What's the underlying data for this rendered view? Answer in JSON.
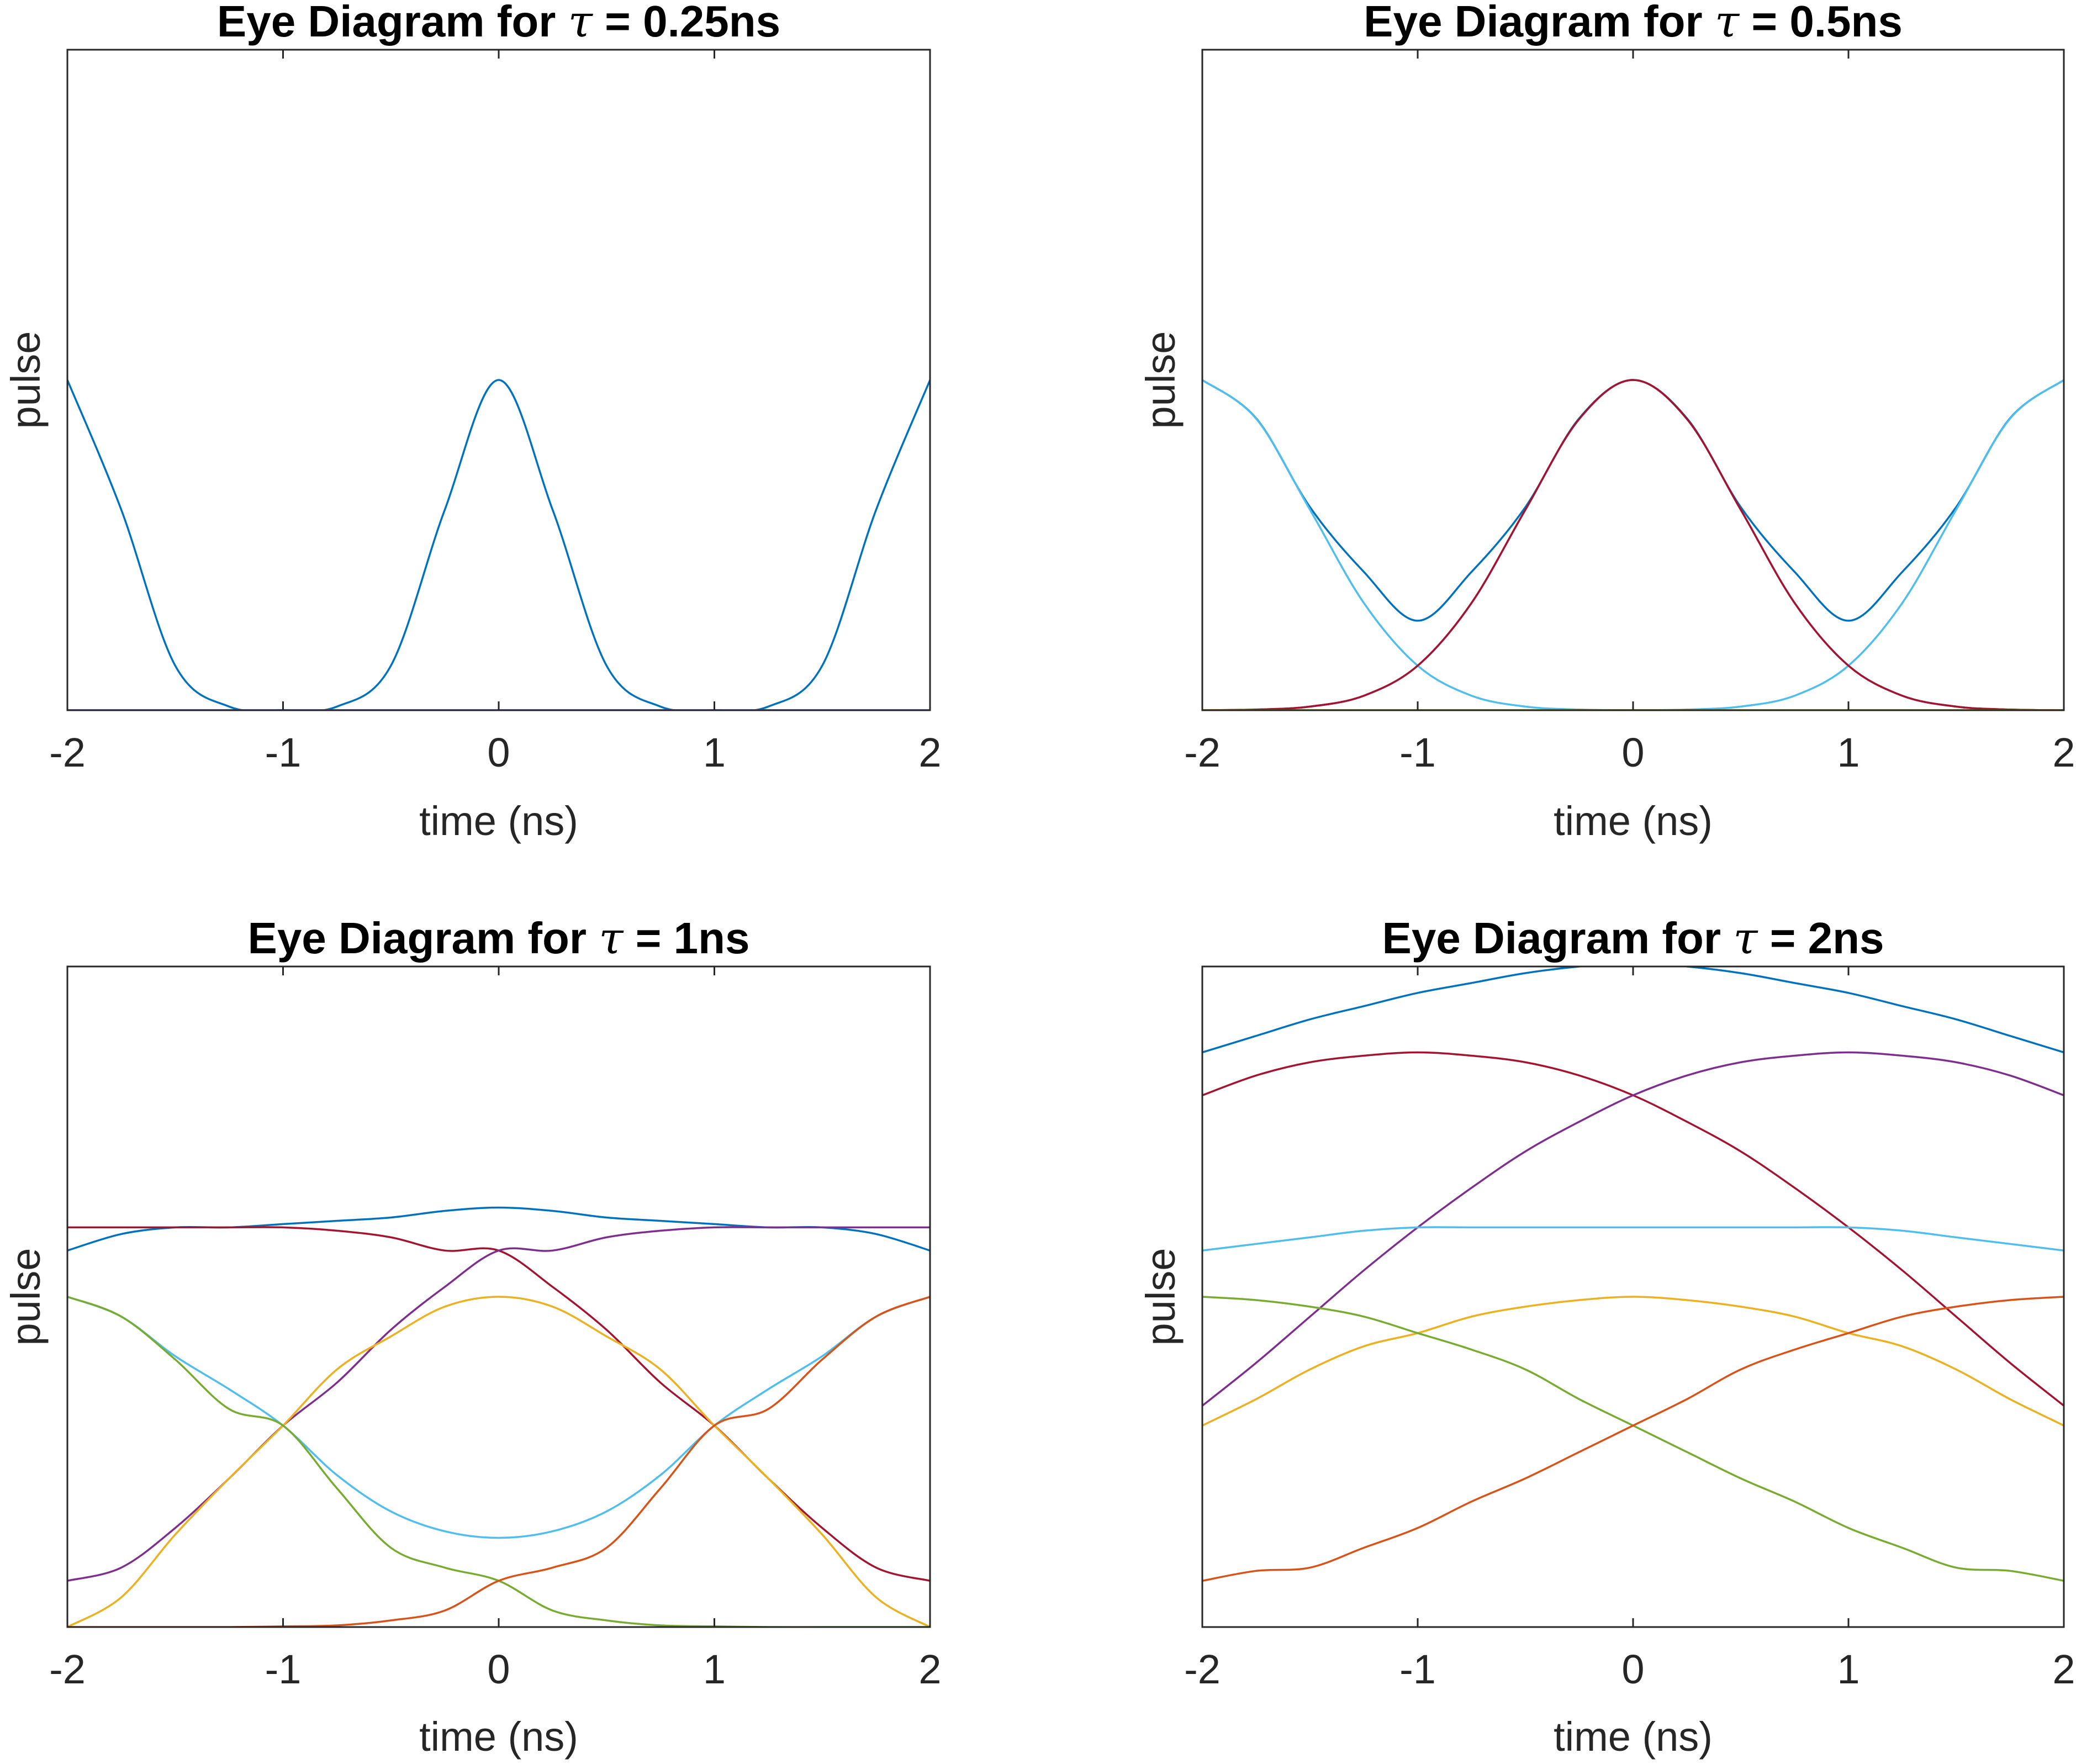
{
  "colors": {
    "blue": "#0072BD",
    "orange": "#D95319",
    "yellow": "#EDB120",
    "purple": "#7E2F8E",
    "green": "#77AC30",
    "cyan": "#4DBEEE",
    "red": "#A2142F"
  },
  "chart_data": [
    {
      "type": "line",
      "title": "Eye Diagram for τ = 0.25ns",
      "title_prefix": "Eye Diagram for ",
      "title_symbol": "τ",
      "title_suffix": " = 0.25ns",
      "xlabel": "time (ns)",
      "ylabel": "pulse",
      "xlim": [
        -2,
        2
      ],
      "ylim": [
        0,
        2
      ],
      "xticks": [
        "-2",
        "-1",
        "0",
        "1",
        "2"
      ],
      "tau": 0.25,
      "x": [
        -2.0,
        -1.75,
        -1.5,
        -1.25,
        -1.0,
        -0.75,
        -0.5,
        -0.25,
        0.0,
        0.25,
        0.5,
        0.75,
        1.0,
        1.25,
        1.5,
        1.75,
        2.0
      ],
      "series": [
        {
          "color": "blue",
          "values": [
            1.0,
            0.607,
            0.135,
            0.011,
            0.0003,
            0.011,
            0.135,
            0.607,
            1.0,
            0.607,
            0.135,
            0.011,
            0.0003,
            0.011,
            0.135,
            0.607,
            1.0
          ]
        },
        {
          "color": "red",
          "values": [
            0.0,
            0.0,
            0.0,
            0.0,
            0.0,
            0.0,
            0.0,
            0.0,
            0.0,
            0.0,
            0.0,
            0.0,
            0.0,
            0.0,
            0.0,
            0.0,
            0.0
          ]
        },
        {
          "color": "purple",
          "values": [
            0.0,
            0.0,
            0.0,
            0.0,
            0.0,
            0.0,
            0.0,
            0.0,
            0.0,
            0.0,
            0.0,
            0.0,
            0.0,
            0.0,
            0.0,
            0.0,
            0.0
          ]
        },
        {
          "color": "cyan",
          "values": [
            0.0,
            0.0,
            0.0,
            0.0,
            0.0,
            0.0,
            0.0,
            0.0,
            0.0,
            0.0,
            0.0,
            0.0,
            0.0,
            0.0,
            0.0,
            0.0,
            0.0
          ]
        }
      ]
    },
    {
      "type": "line",
      "title": "Eye Diagram for τ = 0.5ns",
      "title_prefix": "Eye Diagram for ",
      "title_symbol": "τ",
      "title_suffix": " = 0.5ns",
      "xlabel": "time (ns)",
      "ylabel": "pulse",
      "xlim": [
        -2,
        2
      ],
      "ylim": [
        0,
        2
      ],
      "xticks": [
        "-2",
        "-1",
        "0",
        "1",
        "2"
      ],
      "tau": 0.5,
      "x": [
        -2.0,
        -1.75,
        -1.5,
        -1.25,
        -1.0,
        -0.75,
        -0.5,
        -0.25,
        0.0,
        0.25,
        0.5,
        0.75,
        1.0,
        1.25,
        1.5,
        1.75,
        2.0
      ],
      "series": [
        {
          "color": "blue",
          "values": [
            1.0,
            0.884,
            0.615,
            0.419,
            0.271,
            0.419,
            0.615,
            0.884,
            1.0,
            0.884,
            0.615,
            0.419,
            0.271,
            0.419,
            0.615,
            0.884,
            1.0
          ]
        },
        {
          "color": "cyan",
          "values": [
            1.0,
            0.883,
            0.607,
            0.325,
            0.135,
            0.044,
            0.011,
            0.002,
            0.0003,
            0.002,
            0.011,
            0.044,
            0.135,
            0.325,
            0.607,
            0.883,
            1.0
          ]
        },
        {
          "color": "purple",
          "values": [
            0.0,
            0.002,
            0.011,
            0.044,
            0.135,
            0.325,
            0.607,
            0.882,
            1.0,
            0.882,
            0.607,
            0.325,
            0.135,
            0.044,
            0.011,
            0.002,
            0.0
          ]
        },
        {
          "color": "red",
          "values": [
            0.0,
            0.002,
            0.011,
            0.044,
            0.135,
            0.325,
            0.607,
            0.882,
            1.0,
            0.882,
            0.607,
            0.325,
            0.135,
            0.044,
            0.011,
            0.002,
            0.0
          ]
        },
        {
          "color": "orange",
          "values": [
            0.0,
            0.0,
            0.0,
            0.0,
            0.0,
            0.0,
            0.0,
            0.0,
            0.0,
            0.0,
            0.0,
            0.0,
            0.0,
            0.0,
            0.0,
            0.0,
            0.0
          ]
        },
        {
          "color": "green",
          "values": [
            0.0,
            0.0,
            0.0,
            0.0,
            0.0,
            0.0,
            0.0,
            0.0,
            0.0,
            0.0,
            0.0,
            0.0,
            0.0,
            0.0,
            0.0,
            0.0,
            0.0
          ]
        }
      ]
    },
    {
      "type": "line",
      "title": "Eye Diagram for τ = 1ns",
      "title_prefix": "Eye Diagram for ",
      "title_symbol": "τ",
      "title_suffix": " = 1ns",
      "xlabel": "time (ns)",
      "ylabel": "pulse",
      "xlim": [
        -2,
        2
      ],
      "ylim": [
        0,
        2
      ],
      "xticks": [
        "-2",
        "-1",
        "0",
        "1",
        "2"
      ],
      "tau": 1,
      "x": [
        -2.0,
        -1.75,
        -1.5,
        -1.25,
        -1.0,
        -0.75,
        -0.5,
        -0.25,
        0.0,
        0.25,
        0.5,
        0.75,
        1.0,
        1.25,
        1.5,
        1.75,
        2.0
      ],
      "series": [
        {
          "color": "blue",
          "values": [
            1.14,
            1.19,
            1.21,
            1.21,
            1.22,
            1.23,
            1.24,
            1.26,
            1.27,
            1.26,
            1.24,
            1.23,
            1.22,
            1.21,
            1.21,
            1.19,
            1.14
          ]
        },
        {
          "color": "red",
          "values": [
            1.21,
            1.21,
            1.21,
            1.21,
            1.21,
            1.2,
            1.18,
            1.14,
            1.14,
            1.03,
            0.9,
            0.74,
            0.61,
            0.45,
            0.3,
            0.18,
            0.14
          ]
        },
        {
          "color": "purple",
          "values": [
            0.14,
            0.18,
            0.3,
            0.45,
            0.61,
            0.74,
            0.9,
            1.03,
            1.14,
            1.14,
            1.18,
            1.2,
            1.21,
            1.21,
            1.21,
            1.21,
            1.21
          ]
        },
        {
          "color": "cyan",
          "values": [
            1.0,
            0.94,
            0.82,
            0.72,
            0.61,
            0.46,
            0.35,
            0.29,
            0.27,
            0.29,
            0.35,
            0.46,
            0.61,
            0.72,
            0.82,
            0.94,
            1.0
          ]
        },
        {
          "color": "yellow",
          "values": [
            0.0,
            0.09,
            0.28,
            0.45,
            0.61,
            0.78,
            0.88,
            0.97,
            1.0,
            0.97,
            0.88,
            0.78,
            0.61,
            0.45,
            0.28,
            0.09,
            0.0
          ]
        },
        {
          "color": "green",
          "values": [
            1.0,
            0.94,
            0.81,
            0.66,
            0.61,
            0.42,
            0.24,
            0.18,
            0.14,
            0.05,
            0.02,
            0.005,
            0.002,
            0.0,
            0.0,
            0.0,
            0.0
          ]
        },
        {
          "color": "orange",
          "values": [
            0.0,
            0.0,
            0.0,
            0.0,
            0.002,
            0.005,
            0.02,
            0.05,
            0.14,
            0.18,
            0.24,
            0.42,
            0.61,
            0.66,
            0.81,
            0.94,
            1.0
          ]
        }
      ]
    },
    {
      "type": "line",
      "title": "Eye Diagram for τ = 2ns",
      "title_prefix": "Eye Diagram for ",
      "title_symbol": "τ",
      "title_suffix": " = 2ns",
      "xlabel": "time (ns)",
      "ylabel": "pulse",
      "xlim": [
        -2,
        2
      ],
      "ylim": [
        0,
        2
      ],
      "xticks": [
        "-2",
        "-1",
        "0",
        "1",
        "2"
      ],
      "tau": 2,
      "x": [
        -2.0,
        -1.75,
        -1.5,
        -1.25,
        -1.0,
        -0.75,
        -0.5,
        -0.25,
        0.0,
        0.25,
        0.5,
        0.75,
        1.0,
        1.25,
        1.5,
        1.75,
        2.0
      ],
      "series": [
        {
          "color": "blue",
          "values": [
            1.74,
            1.79,
            1.84,
            1.88,
            1.92,
            1.95,
            1.98,
            2.0,
            2.01,
            2.0,
            1.98,
            1.95,
            1.92,
            1.88,
            1.84,
            1.79,
            1.74
          ]
        },
        {
          "color": "red",
          "values": [
            1.61,
            1.67,
            1.71,
            1.73,
            1.74,
            1.73,
            1.71,
            1.67,
            1.61,
            1.53,
            1.44,
            1.33,
            1.21,
            1.08,
            0.94,
            0.8,
            0.67
          ]
        },
        {
          "color": "purple",
          "values": [
            0.67,
            0.8,
            0.94,
            1.08,
            1.21,
            1.33,
            1.44,
            1.53,
            1.61,
            1.67,
            1.71,
            1.73,
            1.74,
            1.73,
            1.71,
            1.67,
            1.61
          ]
        },
        {
          "color": "cyan",
          "values": [
            1.14,
            1.16,
            1.18,
            1.2,
            1.21,
            1.21,
            1.21,
            1.21,
            1.21,
            1.21,
            1.21,
            1.21,
            1.21,
            1.2,
            1.18,
            1.16,
            1.14
          ]
        },
        {
          "color": "yellow",
          "values": [
            0.61,
            0.69,
            0.78,
            0.85,
            0.89,
            0.94,
            0.97,
            0.99,
            1.0,
            0.99,
            0.97,
            0.94,
            0.89,
            0.85,
            0.78,
            0.69,
            0.61
          ]
        },
        {
          "color": "green",
          "values": [
            1.0,
            0.99,
            0.97,
            0.94,
            0.89,
            0.84,
            0.78,
            0.69,
            0.61,
            0.53,
            0.45,
            0.38,
            0.3,
            0.24,
            0.18,
            0.17,
            0.14
          ]
        },
        {
          "color": "orange",
          "values": [
            0.14,
            0.17,
            0.18,
            0.24,
            0.3,
            0.38,
            0.45,
            0.53,
            0.61,
            0.69,
            0.78,
            0.84,
            0.89,
            0.94,
            0.97,
            0.99,
            1.0
          ]
        }
      ]
    }
  ]
}
